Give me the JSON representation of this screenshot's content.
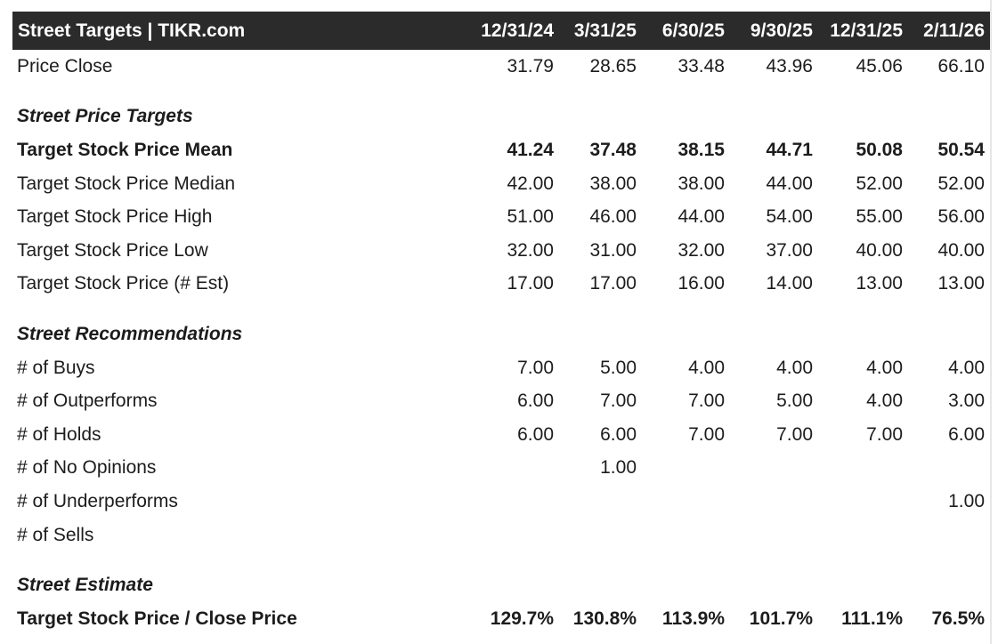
{
  "table": {
    "title": "Street Targets | TIKR.com",
    "columns": [
      "12/31/24",
      "3/31/25",
      "6/30/25",
      "9/30/25",
      "12/31/25",
      "2/11/26"
    ],
    "price_close": {
      "label": "Price Close",
      "values": [
        "31.79",
        "28.65",
        "33.48",
        "43.96",
        "45.06",
        "66.10"
      ]
    },
    "sections": {
      "price_targets": "Street Price Targets",
      "recommendations": "Street Recommendations",
      "estimate": "Street Estimate"
    },
    "mean": {
      "label": "Target Stock Price Mean",
      "values": [
        "41.24",
        "37.48",
        "38.15",
        "44.71",
        "50.08",
        "50.54"
      ]
    },
    "median": {
      "label": "Target Stock Price Median",
      "values": [
        "42.00",
        "38.00",
        "38.00",
        "44.00",
        "52.00",
        "52.00"
      ]
    },
    "high": {
      "label": "Target Stock Price High",
      "values": [
        "51.00",
        "46.00",
        "44.00",
        "54.00",
        "55.00",
        "56.00"
      ]
    },
    "low": {
      "label": "Target Stock Price Low",
      "values": [
        "32.00",
        "31.00",
        "32.00",
        "37.00",
        "40.00",
        "40.00"
      ]
    },
    "num_est": {
      "label": "Target Stock Price (# Est)",
      "values": [
        "17.00",
        "17.00",
        "16.00",
        "14.00",
        "13.00",
        "13.00"
      ]
    },
    "buys": {
      "label": "# of Buys",
      "values": [
        "7.00",
        "5.00",
        "4.00",
        "4.00",
        "4.00",
        "4.00"
      ]
    },
    "outperforms": {
      "label": "# of Outperforms",
      "values": [
        "6.00",
        "7.00",
        "7.00",
        "5.00",
        "4.00",
        "3.00"
      ]
    },
    "holds": {
      "label": "# of Holds",
      "values": [
        "6.00",
        "6.00",
        "7.00",
        "7.00",
        "7.00",
        "6.00"
      ]
    },
    "no_opinions": {
      "label": "# of No Opinions",
      "values": [
        "",
        "1.00",
        "",
        "",
        "",
        ""
      ]
    },
    "underperforms": {
      "label": "# of Underperforms",
      "values": [
        "",
        "",
        "",
        "",
        "",
        "1.00"
      ]
    },
    "sells": {
      "label": "# of Sells",
      "values": [
        "",
        "",
        "",
        "",
        "",
        ""
      ]
    },
    "target_close": {
      "label": "Target Stock Price / Close Price",
      "values": [
        "129.7%",
        "130.8%",
        "113.9%",
        "101.7%",
        "111.1%",
        "76.5%"
      ]
    }
  },
  "colors": {
    "header_bg": "#2b2b2b",
    "header_text": "#ffffff",
    "body_text": "#1c1c1c"
  }
}
